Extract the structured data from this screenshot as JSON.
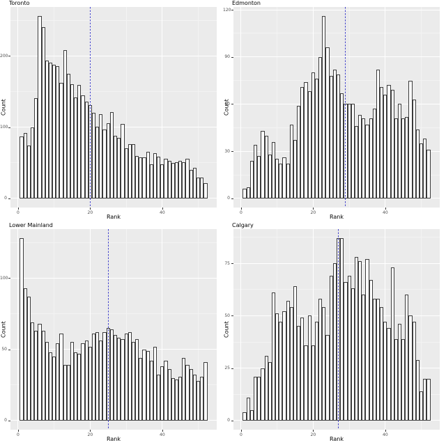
{
  "page": {
    "background": "#FFFFFF"
  },
  "style": {
    "panel_bg": "#EBEBEB",
    "grid_major": "#FFFFFF",
    "grid_minor": "#F3F3F3",
    "bar_fill": "#FFFFFF",
    "bar_stroke": "#3A3A3A",
    "vline_color": "#4242CC",
    "tick_text": "#4D4D4D",
    "axis_text": "#000000"
  },
  "chart_data": [
    {
      "type": "bar",
      "title": "Toronto",
      "xlabel": "Rank",
      "ylabel": "Count",
      "x_start": 1,
      "values": [
        87,
        92,
        74,
        100,
        141,
        256,
        240,
        194,
        191,
        188,
        186,
        162,
        208,
        175,
        160,
        142,
        159,
        145,
        136,
        131,
        120,
        101,
        118,
        97,
        106,
        121,
        88,
        85,
        105,
        70,
        76,
        76,
        60,
        58,
        58,
        65,
        48,
        63,
        59,
        48,
        56,
        53,
        50,
        51,
        53,
        51,
        56,
        40,
        43,
        29,
        29,
        21
      ],
      "ylim": [
        0,
        256
      ],
      "yticks": [
        0,
        100,
        200
      ],
      "yticks_minor": [
        50,
        150,
        250
      ],
      "xticks": [
        0,
        20,
        40
      ],
      "xticks_minor": [
        10,
        30,
        50
      ],
      "vline_x": 20,
      "vline_style": "dotted",
      "grid": true,
      "legend": "none"
    },
    {
      "type": "bar",
      "title": "Edmonton",
      "xlabel": "Rank",
      "ylabel": "Count",
      "x_start": 1,
      "values": [
        6,
        7,
        24,
        34,
        27,
        43,
        40,
        28,
        36,
        25,
        22,
        26,
        22,
        47,
        37,
        59,
        71,
        74,
        68,
        80,
        76,
        90,
        116,
        96,
        78,
        82,
        79,
        67,
        60,
        60,
        60,
        46,
        53,
        51,
        47,
        51,
        57,
        82,
        71,
        66,
        72,
        69,
        51,
        60,
        51,
        52,
        75,
        63,
        44,
        35,
        38,
        31
      ],
      "ylim": [
        0,
        116
      ],
      "yticks": [
        0,
        30,
        60,
        90,
        120
      ],
      "yticks_minor": [
        15,
        45,
        75,
        105
      ],
      "xticks": [
        0,
        20,
        40
      ],
      "xticks_minor": [
        10,
        30,
        50
      ],
      "vline_x": 29,
      "vline_style": "dotted",
      "grid": true,
      "legend": "none"
    },
    {
      "type": "bar",
      "title": "Lower Mainland",
      "xlabel": "Rank",
      "ylabel": "Count",
      "x_start": 1,
      "values": [
        128,
        93,
        87,
        69,
        63,
        68,
        63,
        55,
        48,
        45,
        54,
        61,
        39,
        39,
        55,
        48,
        47,
        54,
        56,
        52,
        61,
        62,
        56,
        62,
        65,
        64,
        60,
        58,
        57,
        61,
        62,
        55,
        57,
        44,
        50,
        49,
        42,
        52,
        32,
        38,
        42,
        36,
        30,
        29,
        31,
        44,
        39,
        36,
        32,
        28,
        31,
        41
      ],
      "ylim": [
        0,
        128
      ],
      "yticks": [
        0,
        50,
        100
      ],
      "yticks_minor": [
        25,
        75,
        125
      ],
      "xticks": [
        0,
        20,
        40
      ],
      "xticks_minor": [
        10,
        30,
        50
      ],
      "vline_x": 25,
      "vline_style": "dotted",
      "grid": true,
      "legend": "none"
    },
    {
      "type": "bar",
      "title": "Calgary",
      "xlabel": "Rank",
      "ylabel": "Count",
      "x_start": 1,
      "values": [
        4,
        11,
        5,
        21,
        21,
        25,
        31,
        28,
        61,
        51,
        47,
        52,
        57,
        54,
        64,
        45,
        49,
        36,
        50,
        36,
        47,
        58,
        54,
        41,
        69,
        75,
        87,
        87,
        66,
        69,
        63,
        78,
        76,
        60,
        77,
        67,
        58,
        58,
        54,
        47,
        44,
        73,
        39,
        46,
        39,
        60,
        50,
        47,
        29,
        14,
        20,
        20
      ],
      "ylim": [
        0,
        87
      ],
      "yticks": [
        0,
        25,
        50,
        75
      ],
      "yticks_minor": [
        12.5,
        37.5,
        62.5,
        87.5
      ],
      "xticks": [
        0,
        20,
        40
      ],
      "xticks_minor": [
        10,
        30,
        50
      ],
      "vline_x": 27,
      "vline_style": "dotted",
      "grid": true,
      "legend": "none"
    }
  ]
}
